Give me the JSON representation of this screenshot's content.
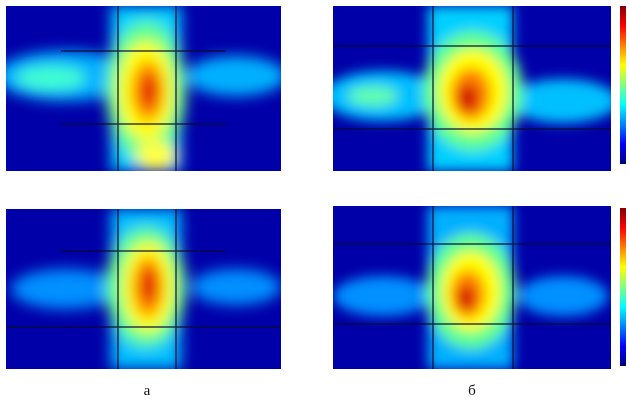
{
  "figure": {
    "captions": {
      "left": "а",
      "right": "б"
    },
    "panels": [
      {
        "id": "a-top",
        "column": "left",
        "row": "top"
      },
      {
        "id": "b-top",
        "column": "right",
        "row": "top"
      },
      {
        "id": "a-bottom",
        "column": "left",
        "row": "bottom"
      },
      {
        "id": "b-bottom",
        "column": "right",
        "row": "bottom"
      }
    ],
    "colormap": [
      "#000080",
      "#0000ff",
      "#0080ff",
      "#00ffff",
      "#80ff80",
      "#ffff00",
      "#ff8000",
      "#ff0000",
      "#800000"
    ]
  }
}
